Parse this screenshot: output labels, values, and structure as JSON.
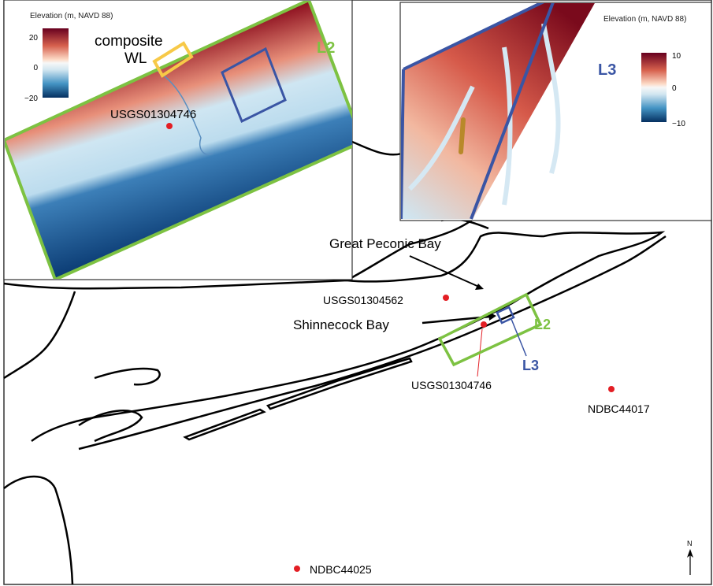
{
  "inset_l2": {
    "colorbar_title": "Elevation (m, NAVD 88)",
    "colorbar_ticks": [
      "20",
      "0",
      "−20"
    ],
    "composite_label_1": "composite",
    "composite_label_2": "WL",
    "box_label": "L2",
    "gauge_label": "USGS01304746"
  },
  "inset_l3": {
    "colorbar_title": "Elevation (m, NAVD 88)",
    "colorbar_ticks": [
      "10",
      "0",
      "−10"
    ],
    "box_label": "L3"
  },
  "main_map": {
    "great_peconic_bay": "Great Peconic Bay",
    "shinnecock_bay": "Shinnecock Bay",
    "stations": [
      {
        "id": "USGS01304562"
      },
      {
        "id": "USGS01304746"
      },
      {
        "id": "NDBC44017"
      },
      {
        "id": "NDBC44025"
      }
    ],
    "l2_label": "L2",
    "l3_label": "L3",
    "north_label": "N"
  },
  "colors": {
    "l2_box": "#7dc242",
    "l3_box": "#3a55a4",
    "composite_box": "#f7c948",
    "station": "#e31e24",
    "high": "#67001f",
    "low": "#053061"
  }
}
